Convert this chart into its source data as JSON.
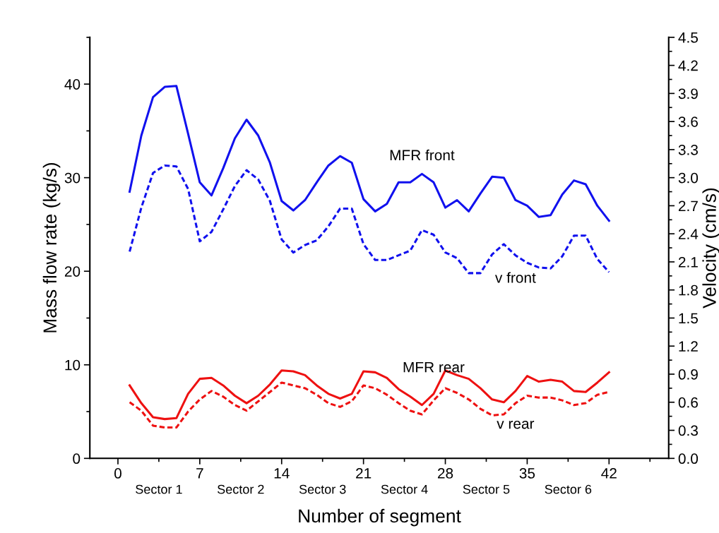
{
  "chart_data": {
    "type": "line",
    "xlabel": "Number of segment",
    "ylabel": "Mass flow rate (kg/s)",
    "y2label": "Velocity (cm/s)",
    "x": [
      1,
      2,
      3,
      4,
      5,
      6,
      7,
      8,
      9,
      10,
      11,
      12,
      13,
      14,
      15,
      16,
      17,
      18,
      19,
      20,
      21,
      22,
      23,
      24,
      25,
      26,
      27,
      28,
      29,
      30,
      31,
      32,
      33,
      34,
      35,
      36,
      37,
      38,
      39,
      40,
      41,
      42
    ],
    "xlim": [
      -2.4,
      47.1
    ],
    "xticks": [
      0,
      7,
      14,
      21,
      28,
      35,
      42
    ],
    "ylim": [
      0,
      45
    ],
    "yticks": [
      0,
      10,
      20,
      30,
      40
    ],
    "y2lim": [
      0,
      4.5
    ],
    "y2ticks": [
      {
        "value": 0,
        "label": "0.0"
      },
      0.3,
      0.6,
      0.9,
      1.2,
      1.5,
      1.8,
      2.1,
      2.4,
      2.7,
      {
        "value": 3,
        "label": "3.0"
      },
      3.3,
      3.6,
      3.9,
      4.2,
      4.5
    ],
    "grid": false,
    "legend": false,
    "marker": "none",
    "annotations": [
      "Sector 1",
      "Sector 2",
      "Sector 3",
      "Sector 4",
      "Sector 5",
      "Sector 6"
    ],
    "series": [
      {
        "name": "MFR front",
        "color": "#1111ee",
        "line_style": "solid",
        "values": [
          28.5,
          34.5,
          38.6,
          39.7,
          39.8,
          34.7,
          29.5,
          28.1,
          31.0,
          34.2,
          36.2,
          34.5,
          31.6,
          27.5,
          26.5,
          27.6,
          29.5,
          31.3,
          32.3,
          31.6,
          27.7,
          26.4,
          27.2,
          29.5,
          29.5,
          30.4,
          29.5,
          26.8,
          27.6,
          26.4,
          28.3,
          30.1,
          30.0,
          27.6,
          27.0,
          25.8,
          26.0,
          28.2,
          29.7,
          29.3,
          27.0,
          25.4
        ]
      },
      {
        "name": "v front",
        "color": "#1111ee",
        "line_style": "dashed",
        "axis": "y2",
        "values": [
          2.21,
          2.68,
          3.05,
          3.13,
          3.12,
          2.88,
          2.32,
          2.42,
          2.66,
          2.91,
          3.08,
          2.98,
          2.75,
          2.34,
          2.2,
          2.28,
          2.33,
          2.48,
          2.67,
          2.67,
          2.29,
          2.12,
          2.12,
          2.17,
          2.22,
          2.44,
          2.39,
          2.2,
          2.14,
          1.98,
          1.98,
          2.18,
          2.29,
          2.17,
          2.09,
          2.04,
          2.03,
          2.16,
          2.38,
          2.38,
          2.13,
          1.99
        ]
      },
      {
        "name": "MFR rear",
        "color": "#ee1111",
        "line_style": "solid",
        "values": [
          7.8,
          5.9,
          4.4,
          4.2,
          4.3,
          6.9,
          8.5,
          8.6,
          7.8,
          6.7,
          5.9,
          6.7,
          7.9,
          9.4,
          9.3,
          8.9,
          7.8,
          6.9,
          6.4,
          6.9,
          9.3,
          9.2,
          8.6,
          7.4,
          6.6,
          5.7,
          6.9,
          9.4,
          8.9,
          8.5,
          7.5,
          6.3,
          6.0,
          7.2,
          8.8,
          8.2,
          8.4,
          8.2,
          7.2,
          7.1,
          8.1,
          9.2
        ]
      },
      {
        "name": "v rear",
        "color": "#ee1111",
        "line_style": "dashed",
        "axis": "y2",
        "values": [
          0.6,
          0.51,
          0.35,
          0.33,
          0.33,
          0.5,
          0.63,
          0.72,
          0.66,
          0.57,
          0.51,
          0.61,
          0.71,
          0.81,
          0.78,
          0.75,
          0.68,
          0.59,
          0.55,
          0.61,
          0.78,
          0.75,
          0.68,
          0.59,
          0.51,
          0.47,
          0.62,
          0.75,
          0.7,
          0.63,
          0.53,
          0.46,
          0.47,
          0.59,
          0.67,
          0.65,
          0.65,
          0.62,
          0.57,
          0.59,
          0.68,
          0.71
        ]
      }
    ]
  }
}
